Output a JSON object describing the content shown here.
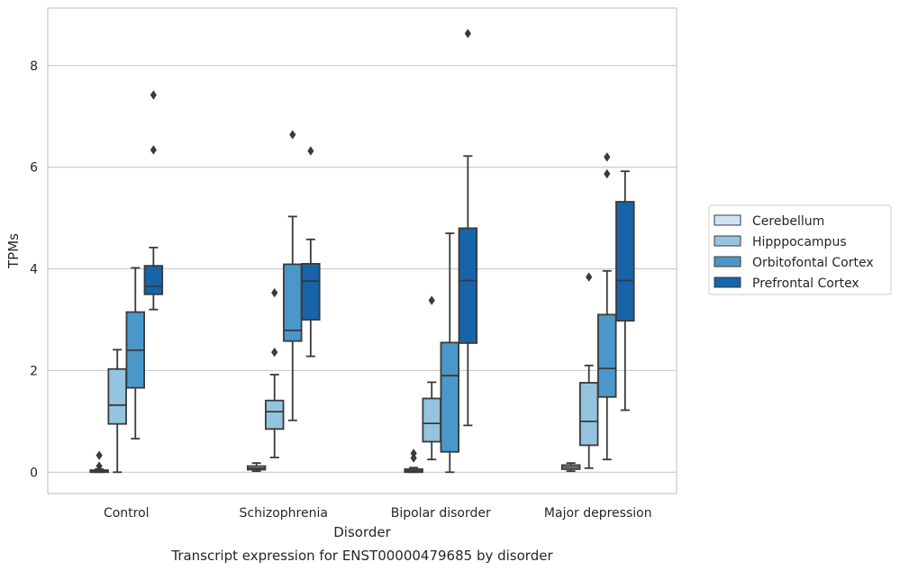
{
  "chart_data": {
    "type": "box",
    "title": "Transcript expression for ENST00000479685 by disorder",
    "xlabel": "Disorder",
    "ylabel": "TPMs",
    "ylim": [
      -0.42,
      9.13
    ],
    "yticks": [
      "0",
      "2",
      "4",
      "6",
      "8"
    ],
    "grid": "horizontal",
    "legend_position": "right",
    "categories": [
      "Control",
      "Schizophrenia",
      "Bipolar disorder",
      "Major depression"
    ],
    "series": [
      {
        "name": "Cerebellum",
        "color": "#d0e2f2",
        "boxes": [
          {
            "whisker_low": 0.0,
            "q1": 0.0,
            "median": 0.02,
            "q3": 0.04,
            "whisker_high": 0.06,
            "outliers": [
              0.12,
              0.33
            ]
          },
          {
            "whisker_low": 0.02,
            "q1": 0.05,
            "median": 0.08,
            "q3": 0.12,
            "whisker_high": 0.18,
            "outliers": []
          },
          {
            "whisker_low": 0.0,
            "q1": 0.0,
            "median": 0.03,
            "q3": 0.06,
            "whisker_high": 0.09,
            "outliers": [
              0.28,
              0.37
            ]
          },
          {
            "whisker_low": 0.02,
            "q1": 0.06,
            "median": 0.1,
            "q3": 0.14,
            "whisker_high": 0.18,
            "outliers": []
          }
        ]
      },
      {
        "name": "Hipppocampus",
        "color": "#94c4df",
        "boxes": [
          {
            "whisker_low": 0.0,
            "q1": 0.95,
            "median": 1.32,
            "q3": 2.03,
            "whisker_high": 2.41,
            "outliers": []
          },
          {
            "whisker_low": 0.29,
            "q1": 0.85,
            "median": 1.19,
            "q3": 1.41,
            "whisker_high": 1.92,
            "outliers": [
              2.36,
              3.53
            ]
          },
          {
            "whisker_low": 0.25,
            "q1": 0.6,
            "median": 0.96,
            "q3": 1.45,
            "whisker_high": 1.77,
            "outliers": [
              3.38
            ]
          },
          {
            "whisker_low": 0.08,
            "q1": 0.53,
            "median": 1.0,
            "q3": 1.76,
            "whisker_high": 2.1,
            "outliers": [
              3.84
            ]
          }
        ]
      },
      {
        "name": "Orbitofontal Cortex",
        "color": "#4a98c9",
        "boxes": [
          {
            "whisker_low": 0.66,
            "q1": 1.66,
            "median": 2.4,
            "q3": 3.15,
            "whisker_high": 4.02,
            "outliers": []
          },
          {
            "whisker_low": 1.02,
            "q1": 2.58,
            "median": 2.79,
            "q3": 4.09,
            "whisker_high": 5.03,
            "outliers": [
              6.64
            ]
          },
          {
            "whisker_low": 0.0,
            "q1": 0.4,
            "median": 1.9,
            "q3": 2.55,
            "whisker_high": 4.7,
            "outliers": []
          },
          {
            "whisker_low": 0.25,
            "q1": 1.48,
            "median": 2.04,
            "q3": 3.1,
            "whisker_high": 3.96,
            "outliers": [
              5.87,
              6.2
            ]
          }
        ]
      },
      {
        "name": "Prefrontal Cortex",
        "color": "#1764ab",
        "boxes": [
          {
            "whisker_low": 3.2,
            "q1": 3.5,
            "median": 3.66,
            "q3": 4.06,
            "whisker_high": 4.42,
            "outliers": [
              6.34,
              7.42
            ]
          },
          {
            "whisker_low": 2.28,
            "q1": 3.0,
            "median": 3.76,
            "q3": 4.1,
            "whisker_high": 4.58,
            "outliers": [
              6.32
            ]
          },
          {
            "whisker_low": 0.92,
            "q1": 2.54,
            "median": 3.77,
            "q3": 4.8,
            "whisker_high": 6.22,
            "outliers": [
              8.63
            ]
          },
          {
            "whisker_low": 1.22,
            "q1": 2.98,
            "median": 3.77,
            "q3": 5.32,
            "whisker_high": 5.92,
            "outliers": []
          }
        ]
      }
    ]
  }
}
